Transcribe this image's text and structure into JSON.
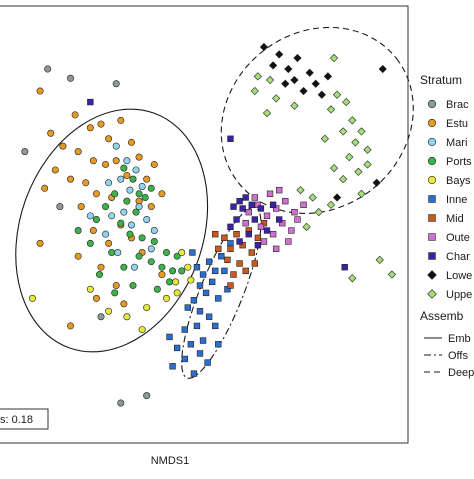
{
  "chart_data": {
    "type": "scatter",
    "xlabel": "NMDS1",
    "ylabel": "",
    "title": "",
    "xlim": [
      -1.2,
      1.4
    ],
    "ylim": [
      -1.2,
      1.1
    ],
    "grid": false,
    "legend_placement": "right",
    "stress_label": "s:  0.18",
    "legend_stratum_title": "Stratum",
    "legend_assemblage_title": "Assemb",
    "series": [
      {
        "name": "Brac",
        "marker": "circle",
        "color": "#8c9a94",
        "points": [
          [
            -0.9,
            0.8
          ],
          [
            -0.75,
            0.75
          ],
          [
            -0.45,
            0.72
          ],
          [
            -1.05,
            0.35
          ],
          [
            -0.82,
            0.05
          ],
          [
            -0.55,
            -0.55
          ],
          [
            -0.42,
            -1.02
          ],
          [
            -0.25,
            -0.98
          ]
        ]
      },
      {
        "name": "Estu",
        "marker": "circle",
        "color": "#e59a22",
        "points": [
          [
            -0.95,
            0.68
          ],
          [
            -0.72,
            0.55
          ],
          [
            -0.62,
            0.48
          ],
          [
            -0.55,
            0.5
          ],
          [
            -0.5,
            0.42
          ],
          [
            -0.42,
            0.52
          ],
          [
            -0.35,
            0.4
          ],
          [
            -0.88,
            0.45
          ],
          [
            -0.8,
            0.38
          ],
          [
            -0.7,
            0.35
          ],
          [
            -0.6,
            0.3
          ],
          [
            -0.52,
            0.28
          ],
          [
            -0.45,
            0.3
          ],
          [
            -0.38,
            0.22
          ],
          [
            -0.3,
            0.32
          ],
          [
            -0.25,
            0.2
          ],
          [
            -0.2,
            0.28
          ],
          [
            -0.65,
            0.18
          ],
          [
            -0.58,
            0.12
          ],
          [
            -0.75,
            0.2
          ],
          [
            -0.85,
            0.25
          ],
          [
            -0.92,
            0.15
          ],
          [
            -0.68,
            0.05
          ],
          [
            -0.48,
            0.1
          ],
          [
            -0.3,
            0.08
          ],
          [
            -0.22,
            0.05
          ],
          [
            -0.15,
            0.12
          ],
          [
            -0.6,
            -0.08
          ],
          [
            -0.5,
            -0.15
          ],
          [
            -0.42,
            -0.05
          ],
          [
            -0.35,
            -0.12
          ],
          [
            -0.28,
            -0.2
          ],
          [
            -0.55,
            -0.28
          ],
          [
            -0.45,
            -0.38
          ],
          [
            -0.7,
            -0.22
          ],
          [
            -0.95,
            -0.15
          ],
          [
            -0.4,
            -0.48
          ],
          [
            -0.58,
            -0.45
          ],
          [
            -0.15,
            -0.32
          ],
          [
            -0.75,
            -0.6
          ]
        ]
      },
      {
        "name": "Mari",
        "marker": "circle",
        "color": "#8fd3ee",
        "points": [
          [
            -0.45,
            0.38
          ],
          [
            -0.38,
            0.3
          ],
          [
            -0.32,
            0.25
          ],
          [
            -0.42,
            0.2
          ],
          [
            -0.5,
            0.18
          ],
          [
            -0.36,
            0.14
          ],
          [
            -0.28,
            0.16
          ],
          [
            -0.3,
            0.05
          ],
          [
            -0.4,
            0.02
          ],
          [
            -0.48,
            0.0
          ],
          [
            -0.35,
            -0.05
          ],
          [
            -0.25,
            -0.02
          ],
          [
            -0.2,
            -0.08
          ],
          [
            -0.52,
            -0.1
          ],
          [
            -0.62,
            0.0
          ],
          [
            -0.44,
            -0.2
          ],
          [
            -0.33,
            -0.28
          ],
          [
            -0.22,
            -0.18
          ]
        ]
      },
      {
        "name": "Ports",
        "marker": "circle",
        "color": "#3cb34a",
        "points": [
          [
            -0.4,
            0.26
          ],
          [
            -0.34,
            0.2
          ],
          [
            -0.3,
            0.12
          ],
          [
            -0.38,
            0.08
          ],
          [
            -0.46,
            0.12
          ],
          [
            -0.26,
            0.1
          ],
          [
            -0.22,
            0.15
          ],
          [
            -0.32,
            0.02
          ],
          [
            -0.42,
            -0.04
          ],
          [
            -0.52,
            0.05
          ],
          [
            -0.58,
            -0.02
          ],
          [
            -0.36,
            -0.1
          ],
          [
            -0.28,
            -0.12
          ],
          [
            -0.2,
            -0.14
          ],
          [
            -0.12,
            -0.2
          ],
          [
            -0.05,
            -0.22
          ],
          [
            -0.08,
            -0.3
          ],
          [
            -0.15,
            -0.28
          ],
          [
            -0.22,
            -0.25
          ],
          [
            -0.3,
            -0.22
          ],
          [
            -0.4,
            -0.28
          ],
          [
            -0.48,
            -0.2
          ],
          [
            -0.56,
            -0.32
          ],
          [
            -0.46,
            -0.42
          ],
          [
            -0.34,
            -0.38
          ],
          [
            -0.18,
            -0.4
          ],
          [
            -0.1,
            -0.36
          ],
          [
            -0.02,
            -0.3
          ],
          [
            -0.62,
            -0.15
          ],
          [
            -0.7,
            -0.08
          ]
        ]
      },
      {
        "name": "Bays",
        "marker": "circle",
        "color": "#e8e83a",
        "points": [
          [
            -0.02,
            -0.2
          ],
          [
            0.02,
            -0.28
          ],
          [
            -0.06,
            -0.36
          ],
          [
            -0.12,
            -0.45
          ],
          [
            -0.25,
            -0.5
          ],
          [
            -0.38,
            -0.55
          ],
          [
            -0.5,
            -0.52
          ],
          [
            -0.62,
            -0.4
          ],
          [
            -1.0,
            -0.45
          ],
          [
            -0.28,
            -0.62
          ],
          [
            -0.05,
            -0.42
          ],
          [
            0.04,
            -0.35
          ]
        ]
      },
      {
        "name": "Inne",
        "marker": "square",
        "color": "#2a6fd0",
        "points": [
          [
            0.05,
            -0.2
          ],
          [
            0.08,
            -0.28
          ],
          [
            0.12,
            -0.32
          ],
          [
            0.16,
            -0.25
          ],
          [
            0.2,
            -0.3
          ],
          [
            0.24,
            -0.22
          ],
          [
            0.1,
            -0.38
          ],
          [
            0.14,
            -0.42
          ],
          [
            0.18,
            -0.36
          ],
          [
            0.22,
            -0.45
          ],
          [
            0.06,
            -0.46
          ],
          [
            0.02,
            -0.5
          ],
          [
            0.1,
            -0.52
          ],
          [
            0.16,
            -0.55
          ],
          [
            0.2,
            -0.6
          ],
          [
            0.08,
            -0.6
          ],
          [
            0.12,
            -0.68
          ],
          [
            0.04,
            -0.7
          ],
          [
            0.1,
            -0.75
          ],
          [
            0.0,
            -0.78
          ],
          [
            -0.05,
            -0.72
          ],
          [
            0.15,
            -0.8
          ],
          [
            -0.08,
            -0.82
          ],
          [
            0.06,
            -0.86
          ],
          [
            0.28,
            -0.4
          ],
          [
            0.26,
            -0.3
          ],
          [
            0.3,
            -0.15
          ],
          [
            0.0,
            -0.62
          ],
          [
            -0.1,
            -0.66
          ],
          [
            0.22,
            -0.7
          ]
        ]
      },
      {
        "name": "Mid",
        "marker": "square",
        "color": "#c85a1e",
        "points": [
          [
            0.26,
            -0.12
          ],
          [
            0.3,
            -0.18
          ],
          [
            0.34,
            -0.1
          ],
          [
            0.38,
            -0.16
          ],
          [
            0.42,
            -0.08
          ],
          [
            0.28,
            -0.24
          ],
          [
            0.36,
            -0.26
          ],
          [
            0.44,
            -0.2
          ],
          [
            0.32,
            -0.32
          ],
          [
            0.4,
            -0.3
          ],
          [
            0.48,
            -0.12
          ],
          [
            0.22,
            -0.18
          ],
          [
            0.46,
            -0.26
          ],
          [
            0.52,
            -0.04
          ],
          [
            0.3,
            -0.38
          ],
          [
            0.2,
            -0.1
          ]
        ]
      },
      {
        "name": "Oute",
        "marker": "square",
        "color": "#cf6fd0",
        "points": [
          [
            0.42,
            0.02
          ],
          [
            0.48,
            0.06
          ],
          [
            0.54,
            0.0
          ],
          [
            0.6,
            0.04
          ],
          [
            0.66,
            0.08
          ],
          [
            0.72,
            0.02
          ],
          [
            0.78,
            0.06
          ],
          [
            0.5,
            -0.06
          ],
          [
            0.58,
            -0.1
          ],
          [
            0.64,
            -0.04
          ],
          [
            0.7,
            -0.08
          ],
          [
            0.46,
            0.1
          ],
          [
            0.56,
            0.12
          ],
          [
            0.62,
            0.14
          ],
          [
            0.52,
            -0.14
          ],
          [
            0.6,
            -0.18
          ],
          [
            0.68,
            -0.14
          ],
          [
            0.4,
            -0.04
          ],
          [
            0.74,
            -0.02
          ]
        ]
      },
      {
        "name": "Char",
        "marker": "square",
        "color": "#3b22a8",
        "points": [
          [
            0.34,
            -0.02
          ],
          [
            0.38,
            0.04
          ],
          [
            0.42,
            -0.1
          ],
          [
            0.46,
            -0.02
          ],
          [
            0.36,
            0.08
          ],
          [
            0.5,
            0.04
          ],
          [
            0.44,
            0.06
          ],
          [
            0.4,
            0.1
          ],
          [
            0.32,
            0.05
          ],
          [
            0.54,
            -0.08
          ],
          [
            0.3,
            -0.06
          ],
          [
            0.48,
            -0.16
          ],
          [
            0.58,
            0.06
          ],
          [
            0.62,
            -0.02
          ],
          [
            0.36,
            -0.14
          ],
          [
            -0.62,
            0.62
          ],
          [
            0.3,
            0.42
          ],
          [
            1.05,
            -0.28
          ]
        ]
      },
      {
        "name": "Lowe",
        "marker": "diamond",
        "color": "#111111",
        "points": [
          [
            0.52,
            0.92
          ],
          [
            0.58,
            0.82
          ],
          [
            0.62,
            0.88
          ],
          [
            0.68,
            0.8
          ],
          [
            0.72,
            0.74
          ],
          [
            0.74,
            0.86
          ],
          [
            0.78,
            0.68
          ],
          [
            0.82,
            0.78
          ],
          [
            0.86,
            0.72
          ],
          [
            0.9,
            0.66
          ],
          [
            0.66,
            0.72
          ],
          [
            0.94,
            0.76
          ],
          [
            1.3,
            0.8
          ],
          [
            1.26,
            0.18
          ],
          [
            1.0,
            0.1
          ]
        ]
      },
      {
        "name": "Uppe",
        "marker": "diamond",
        "color": "#a3e07a",
        "points": [
          [
            0.48,
            0.76
          ],
          [
            0.46,
            0.68
          ],
          [
            0.56,
            0.74
          ],
          [
            0.6,
            0.64
          ],
          [
            0.98,
            0.86
          ],
          [
            1.0,
            0.66
          ],
          [
            0.96,
            0.58
          ],
          [
            1.06,
            0.62
          ],
          [
            1.1,
            0.52
          ],
          [
            1.04,
            0.46
          ],
          [
            1.12,
            0.4
          ],
          [
            1.16,
            0.46
          ],
          [
            1.2,
            0.36
          ],
          [
            1.08,
            0.32
          ],
          [
            1.14,
            0.24
          ],
          [
            1.04,
            0.2
          ],
          [
            0.98,
            0.26
          ],
          [
            1.2,
            0.28
          ],
          [
            0.84,
            0.1
          ],
          [
            0.88,
            0.02
          ],
          [
            0.96,
            0.06
          ],
          [
            0.8,
            -0.06
          ],
          [
            0.76,
            0.14
          ],
          [
            1.16,
            0.12
          ],
          [
            1.28,
            -0.24
          ],
          [
            1.36,
            -0.32
          ],
          [
            1.1,
            -0.34
          ],
          [
            0.72,
            0.6
          ],
          [
            0.54,
            0.56
          ],
          [
            0.92,
            0.42
          ]
        ]
      }
    ],
    "ellipses": [
      {
        "name": "Emb",
        "style": "solid",
        "center": [
          -0.48,
          -0.08
        ],
        "rx": 0.6,
        "ry": 0.68,
        "rotation_deg": 20
      },
      {
        "name": "Offs",
        "style": "dashdot",
        "center": [
          0.24,
          -0.42
        ],
        "rx": 0.14,
        "ry": 0.5,
        "rotation_deg": 22
      },
      {
        "name": "Deep",
        "style": "dashed",
        "center": [
          0.87,
          0.52
        ],
        "rx": 0.66,
        "ry": 0.48,
        "rotation_deg": -38
      }
    ]
  }
}
